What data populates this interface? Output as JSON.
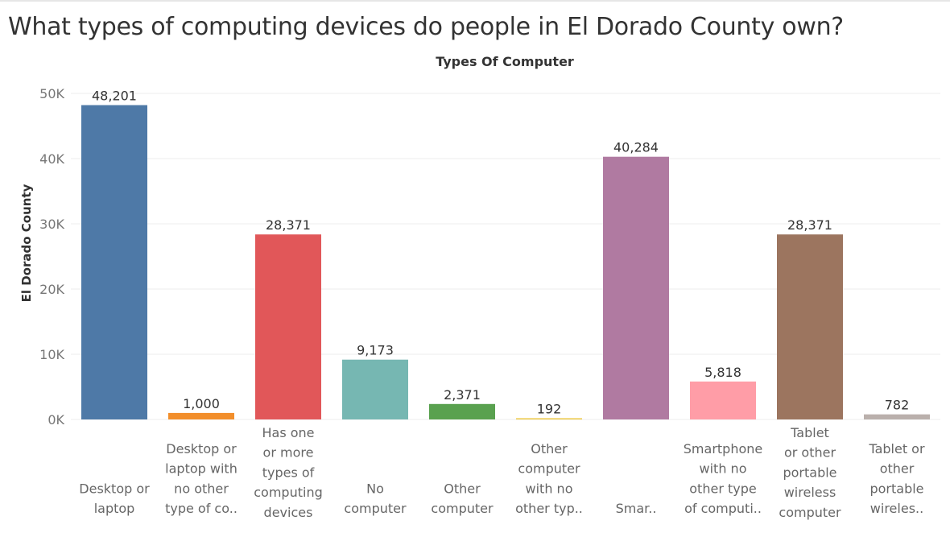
{
  "page": {
    "title": "What types of computing devices do people in El Dorado County own?"
  },
  "chart_data": {
    "type": "bar",
    "title": "Types Of Computer",
    "ylabel": "El Dorado County",
    "xlabel": "",
    "ylim": [
      0,
      50000
    ],
    "y_ticks": [
      0,
      10000,
      20000,
      30000,
      40000,
      50000
    ],
    "y_tick_labels": [
      "0K",
      "10K",
      "20K",
      "30K",
      "40K",
      "50K"
    ],
    "grid": true,
    "categories": [
      "Desktop or laptop",
      "Desktop or laptop with no other type of co..",
      "Has one or more types of computing devices",
      "No computer",
      "Other computer",
      "Other computer with no other typ..",
      "Smar..",
      "Smartphone with no other type of computi..",
      "Tablet or other portable wireless computer",
      "Tablet or other portable wireles.."
    ],
    "category_label_lines": [
      [
        "Desktop or",
        "laptop"
      ],
      [
        "Desktop or",
        "laptop with",
        "no other",
        "type of co.."
      ],
      [
        "Has one",
        "or more",
        "types of",
        "computing",
        "devices"
      ],
      [
        "No",
        "computer"
      ],
      [
        "Other",
        "computer"
      ],
      [
        "Other",
        "computer",
        "with no",
        "other typ.."
      ],
      [
        "Smar.."
      ],
      [
        "Smartphone",
        "with no",
        "other type",
        "of computi.."
      ],
      [
        "Tablet",
        "or other",
        "portable",
        "wireless",
        "computer"
      ],
      [
        "Tablet or",
        "other",
        "portable",
        "wireles.."
      ]
    ],
    "values": [
      48201,
      1000,
      28371,
      9173,
      2371,
      192,
      40284,
      5818,
      28371,
      782
    ],
    "value_labels": [
      "48,201",
      "1,000",
      "28,371",
      "9,173",
      "2,371",
      "192",
      "40,284",
      "5,818",
      "28,371",
      "782"
    ],
    "colors": [
      "#4e79a7",
      "#f28e2b",
      "#e15759",
      "#76b7b2",
      "#59a14f",
      "#edc948",
      "#b07aa1",
      "#ff9da7",
      "#9c755f",
      "#bab0ac"
    ]
  }
}
